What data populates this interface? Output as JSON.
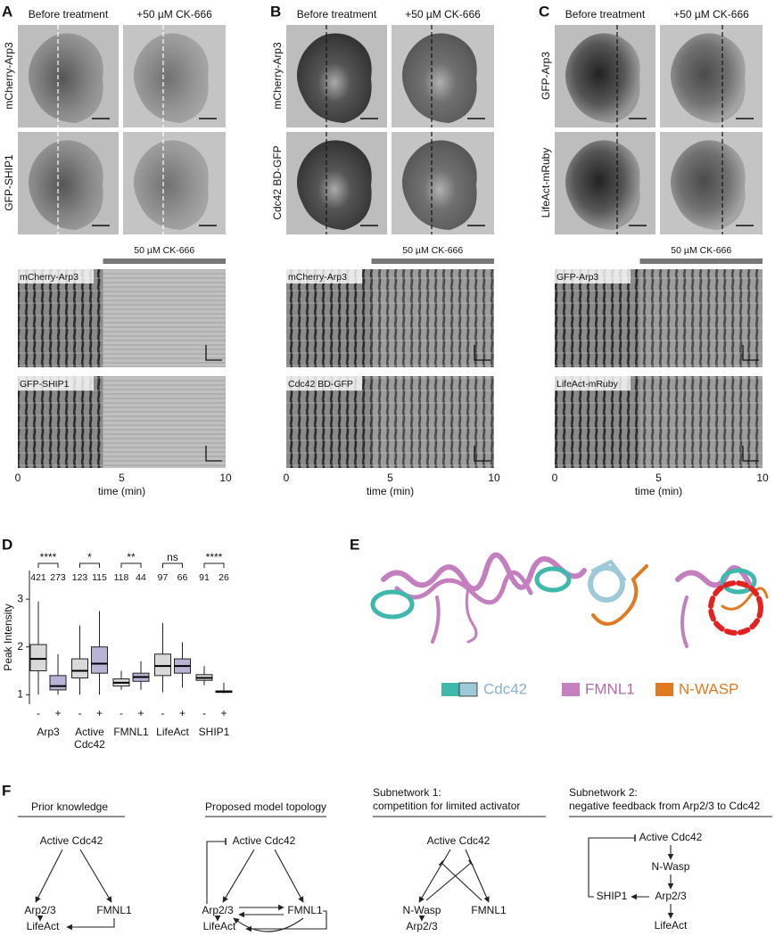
{
  "panels": {
    "A": {
      "letter": "A",
      "col_labels": [
        "Before treatment",
        "+50 µM CK-666"
      ],
      "row_labels": [
        "mCherry-Arp3",
        "GFP-SHIP1"
      ],
      "kymo_bar": "50 µM CK-666",
      "kymo_labels": [
        "mCherry-Arp3",
        "GFP-SHIP1"
      ],
      "time_ticks": [
        0,
        5,
        10
      ],
      "time_label": "time (min)"
    },
    "B": {
      "letter": "B",
      "col_labels": [
        "Before treatment",
        "+50 µM CK-666"
      ],
      "row_labels": [
        "mCherry-Arp3",
        "Cdc42 BD-GFP"
      ],
      "kymo_bar": "50 µM CK-666",
      "kymo_labels": [
        "mCherry-Arp3",
        "Cdc42 BD-GFP"
      ],
      "time_ticks": [
        0,
        5,
        10
      ],
      "time_label": "time (min)"
    },
    "C": {
      "letter": "C",
      "col_labels": [
        "Before treatment",
        "+50 µM CK-666"
      ],
      "row_labels": [
        "GFP-Arp3",
        "LifeAct-mRuby"
      ],
      "kymo_bar": "50 µM CK-666",
      "kymo_labels": [
        "GFP-Arp3",
        "LifeAct-mRuby"
      ],
      "time_ticks": [
        0,
        5,
        10
      ],
      "time_label": "time (min)"
    },
    "D": {
      "letter": "D",
      "chart_data": {
        "type": "box",
        "ylabel": "Peak Intensity",
        "ylim": [
          0.8,
          3.6
        ],
        "yticks": [
          1,
          2,
          3
        ],
        "groups": [
          {
            "label_lines": [
              "Arp3"
            ],
            "significance": "****",
            "conditions": [
              "-",
              "+"
            ],
            "n": [
              421,
              273
            ],
            "colors": [
              "#d9d9d9",
              "#b9b3d6"
            ],
            "boxes": [
              {
                "whislo": 1.0,
                "q1": 1.5,
                "median": 1.75,
                "q3": 2.05,
                "whishi": 2.95
              },
              {
                "whislo": 1.0,
                "q1": 1.1,
                "median": 1.18,
                "q3": 1.4,
                "whishi": 1.85
              }
            ]
          },
          {
            "label_lines": [
              "Active",
              "Cdc42"
            ],
            "significance": "*",
            "conditions": [
              "-",
              "+"
            ],
            "n": [
              123,
              115
            ],
            "colors": [
              "#d9d9d9",
              "#b9b3d6"
            ],
            "boxes": [
              {
                "whislo": 1.0,
                "q1": 1.35,
                "median": 1.5,
                "q3": 1.75,
                "whishi": 2.45
              },
              {
                "whislo": 1.0,
                "q1": 1.45,
                "median": 1.65,
                "q3": 2.0,
                "whishi": 2.75
              }
            ]
          },
          {
            "label_lines": [
              "FMNL1"
            ],
            "significance": "**",
            "conditions": [
              "-",
              "+"
            ],
            "n": [
              118,
              44
            ],
            "colors": [
              "#d9d9d9",
              "#b9b3d6"
            ],
            "boxes": [
              {
                "whislo": 1.1,
                "q1": 1.18,
                "median": 1.25,
                "q3": 1.33,
                "whishi": 1.5
              },
              {
                "whislo": 1.1,
                "q1": 1.28,
                "median": 1.37,
                "q3": 1.45,
                "whishi": 1.7
              }
            ]
          },
          {
            "label_lines": [
              "LifeAct"
            ],
            "significance": "ns",
            "conditions": [
              "-",
              "+"
            ],
            "n": [
              97,
              66
            ],
            "colors": [
              "#d9d9d9",
              "#b9b3d6"
            ],
            "boxes": [
              {
                "whislo": 1.05,
                "q1": 1.4,
                "median": 1.6,
                "q3": 1.85,
                "whishi": 2.5
              },
              {
                "whislo": 1.15,
                "q1": 1.45,
                "median": 1.6,
                "q3": 1.75,
                "whishi": 2.1
              }
            ]
          },
          {
            "label_lines": [
              "SHIP1"
            ],
            "significance": "****",
            "conditions": [
              "-",
              "+"
            ],
            "n": [
              91,
              26
            ],
            "colors": [
              "#d9d9d9",
              "#b9b3d6"
            ],
            "boxes": [
              {
                "whislo": 1.2,
                "q1": 1.3,
                "median": 1.35,
                "q3": 1.42,
                "whishi": 1.6
              },
              {
                "whislo": 1.03,
                "q1": 1.05,
                "median": 1.06,
                "q3": 1.08,
                "whishi": 1.25
              }
            ]
          }
        ]
      }
    },
    "E": {
      "letter": "E",
      "legend": [
        "Cdc42",
        "FMNL1",
        "N-WASP"
      ]
    },
    "F": {
      "letter": "F",
      "networks": [
        {
          "title_lines": [
            "Prior knowledge"
          ],
          "nodes": [
            "Active Cdc42",
            "Arp2/3",
            "FMNL1",
            "LifeAct"
          ]
        },
        {
          "title_lines": [
            "Proposed model topology"
          ],
          "nodes": [
            "Active Cdc42",
            "Arp2/3",
            "FMNL1",
            "LifeAct"
          ]
        },
        {
          "title_lines": [
            "Subnetwork 1:",
            "competition for limited activator"
          ],
          "nodes": [
            "Active Cdc42",
            "N-Wasp",
            "FMNL1",
            "Arp2/3"
          ]
        },
        {
          "title_lines": [
            "Subnetwork 2:",
            "negative feedback from Arp2/3 to Cdc42"
          ],
          "nodes": [
            "Active Cdc42",
            "N-Wasp",
            "Arp2/3",
            "SHIP1",
            "LifeAct"
          ]
        }
      ]
    }
  }
}
